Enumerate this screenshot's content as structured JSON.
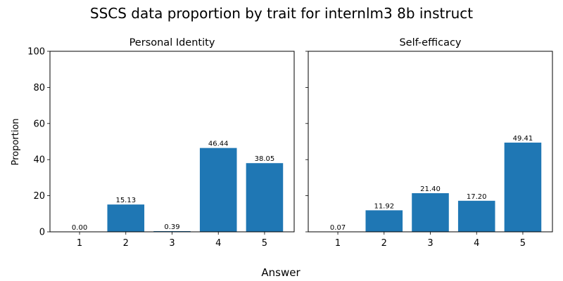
{
  "figure": {
    "title": "SSCS data proportion by trait for internlm3 8b instruct",
    "xlabel": "Answer",
    "ylabel": "Proportion"
  },
  "colors": {
    "bar": "#1f77b4",
    "axis": "#000000",
    "background": "#ffffff"
  },
  "chart_data": [
    {
      "type": "bar",
      "title": "Personal Identity",
      "categories": [
        "1",
        "2",
        "3",
        "4",
        "5"
      ],
      "values": [
        0.0,
        15.13,
        0.39,
        46.44,
        38.05
      ],
      "value_labels": [
        "0.00",
        "15.13",
        "0.39",
        "46.44",
        "38.05"
      ],
      "xlabel": "Answer",
      "ylabel": "Proportion",
      "ylim": [
        0,
        100
      ],
      "yticks": [
        "0",
        "20",
        "40",
        "60",
        "80",
        "100"
      ],
      "grid": false
    },
    {
      "type": "bar",
      "title": "Self-efficacy",
      "categories": [
        "1",
        "2",
        "3",
        "4",
        "5"
      ],
      "values": [
        0.07,
        11.92,
        21.4,
        17.2,
        49.41
      ],
      "value_labels": [
        "0.07",
        "11.92",
        "21.40",
        "17.20",
        "49.41"
      ],
      "xlabel": "Answer",
      "ylabel": "Proportion",
      "ylim": [
        0,
        100
      ],
      "yticks": [
        "0",
        "20",
        "40",
        "60",
        "80",
        "100"
      ],
      "grid": false
    }
  ]
}
